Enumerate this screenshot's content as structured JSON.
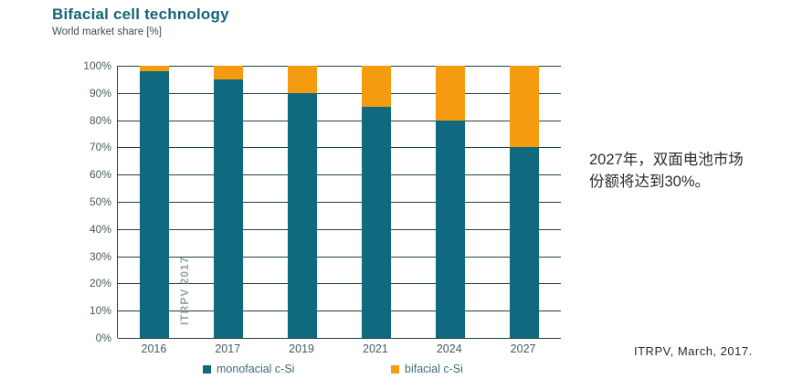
{
  "title": "Bifacial cell technology",
  "subtitle": "World market share [%]",
  "watermark": "ITRPV 2017",
  "annotation": {
    "line1": "2027年，双面电池市场",
    "line2": "份额将达到30%。"
  },
  "source": "ITRPV, March, 2017.",
  "legend": [
    {
      "label": "monofacial c-Si",
      "color": "#0F6A80"
    },
    {
      "label": "bifacial c-Si",
      "color": "#F59B0F"
    }
  ],
  "colors": {
    "monofacial": "#0F6A80",
    "bifacial": "#F59B0F",
    "gridline": "#20403F",
    "title": "#156477",
    "axis_text": "#49595C"
  },
  "chart_data": {
    "type": "bar",
    "stacked": true,
    "title": "Bifacial cell technology",
    "subtitle": "World market share [%]",
    "categories": [
      "2016",
      "2017",
      "2019",
      "2021",
      "2024",
      "2027"
    ],
    "series": [
      {
        "name": "monofacial c-Si",
        "color": "#0F6A80",
        "values": [
          98,
          95,
          90,
          85,
          80,
          70
        ]
      },
      {
        "name": "bifacial c-Si",
        "color": "#F59B0F",
        "values": [
          2,
          5,
          10,
          15,
          20,
          30
        ]
      }
    ],
    "xlabel": "",
    "ylabel": "World market share [%]",
    "ylim": [
      0,
      100
    ],
    "yticks": [
      0,
      10,
      20,
      30,
      40,
      50,
      60,
      70,
      80,
      90,
      100
    ],
    "ytick_labels": [
      "0%",
      "10%",
      "20%",
      "30%",
      "40%",
      "50%",
      "60%",
      "70%",
      "80%",
      "90%",
      "100%"
    ],
    "grid": true,
    "legend_position": "bottom"
  }
}
